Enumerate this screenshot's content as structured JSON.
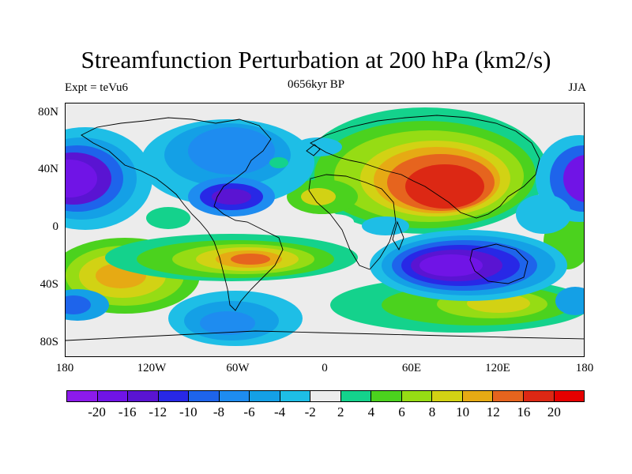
{
  "title": "Streamfunction Perturbation at 200 hPa (km2/s)",
  "subtitle_left": "Expt = teVu6",
  "subtitle_center": "0656kyr BP",
  "subtitle_right": "JJA",
  "y_ticks": [
    "80N",
    "40N",
    "0",
    "40S",
    "80S"
  ],
  "x_ticks": [
    "180",
    "120W",
    "60W",
    "0",
    "60E",
    "120E",
    "180"
  ],
  "colorbar": {
    "labels": [
      "-20",
      "-16",
      "-12",
      "-10",
      "-8",
      "-6",
      "-4",
      "-2",
      "2",
      "4",
      "6",
      "8",
      "10",
      "12",
      "16",
      "20"
    ],
    "colors": [
      "#8c1aeb",
      "#7014e6",
      "#5a14d2",
      "#2828e6",
      "#1e64eb",
      "#1e8cf0",
      "#14a0e6",
      "#1ebee6",
      "#ececec",
      "#14d28c",
      "#4bd21e",
      "#96dc14",
      "#d2d214",
      "#e6aa14",
      "#e6641e",
      "#dc2814",
      "#e60000"
    ]
  }
}
